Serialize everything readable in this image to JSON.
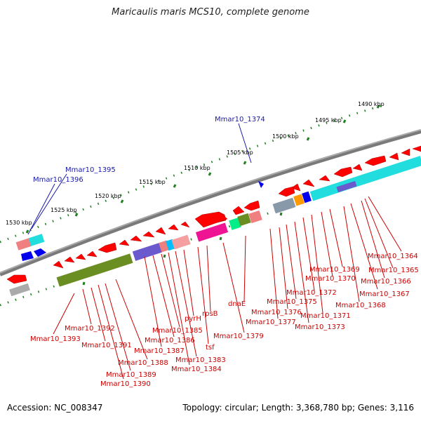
{
  "title": "Maricaulis maris MCS10, complete genome",
  "footer": {
    "accession": "Accession: NC_008347",
    "topology": "Topology: circular; Length: 3,368,780 bp; Genes: 3,116"
  },
  "colors": {
    "backbone": "#808080",
    "gene_forward": "#ff0000",
    "gene_reverse": "#ff0000",
    "highlight_gene": "#0000ff",
    "tick": "#208020",
    "label_default": "#cc0000",
    "label_highlight": "#1a1aaa"
  },
  "scale_ticks": [
    "1490 kbp",
    "1495 kbp",
    "1500 kbp",
    "1505 kbp",
    "1510 kbp",
    "1515 kbp",
    "1520 kbp",
    "1525 kbp",
    "1530 kbp"
  ],
  "gene_labels": [
    "Mmar10_1364",
    "Mmar10_1365",
    "Mmar10_1366",
    "Mmar10_1367",
    "Mmar10_1368",
    "Mmar10_1369",
    "Mmar10_1370",
    "Mmar10_1371",
    "Mmar10_1372",
    "Mmar10_1373",
    "Mmar10_1375",
    "Mmar10_1376",
    "Mmar10_1377",
    "dnaE",
    "Mmar10_1379",
    "rpsB",
    "tsf",
    "pyrH",
    "Mmar10_1383",
    "Mmar10_1384",
    "Mmar10_1385",
    "Mmar10_1386",
    "Mmar10_1387",
    "Mmar10_1388",
    "Mmar10_1389",
    "Mmar10_1390",
    "Mmar10_1391",
    "Mmar10_1392",
    "Mmar10_1393"
  ],
  "highlight_labels": [
    "Mmar10_1374",
    "Mmar10_1395",
    "Mmar10_1396"
  ]
}
